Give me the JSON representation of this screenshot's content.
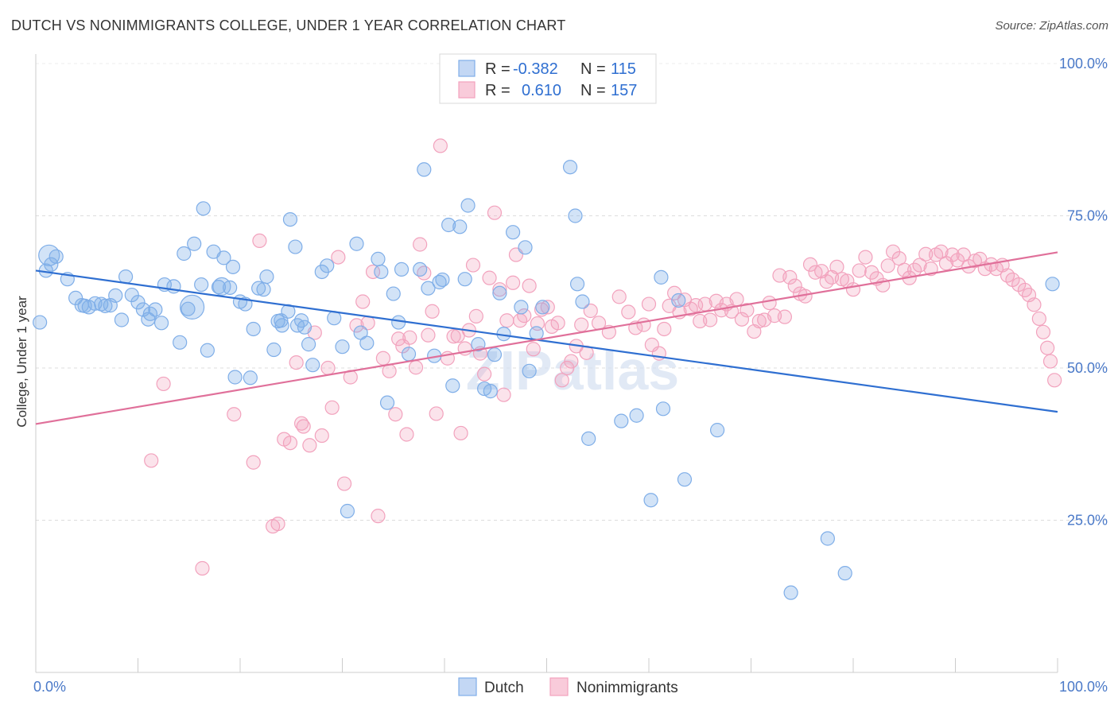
{
  "title": "DUTCH VS NONIMMIGRANTS COLLEGE, UNDER 1 YEAR CORRELATION CHART",
  "source": "Source: ZipAtlas.com",
  "watermark": "ZIPatlas",
  "legend_top": {
    "r_label": "R =",
    "n_label": "N =",
    "rows": [
      {
        "series": "Dutch",
        "r": "-0.382",
        "n": "115"
      },
      {
        "series": "Nonimmigrants",
        "r": "0.610",
        "n": "157"
      }
    ]
  },
  "chart_data": {
    "type": "scatter",
    "xlabel": "",
    "ylabel": "College, Under 1 year",
    "xlim": [
      0,
      100
    ],
    "ylim": [
      0,
      100
    ],
    "x_tick_labels": [
      "0.0%",
      "100.0%"
    ],
    "y_ticks": [
      25,
      50,
      75,
      100
    ],
    "y_tick_labels": [
      "25.0%",
      "50.0%",
      "75.0%",
      "100.0%"
    ],
    "grid": "horizontal dashed",
    "legend_position": "bottom-center",
    "colors": {
      "Dutch": "#7faee8",
      "Nonimmigrants": "#f2a2bd",
      "Dutch_line": "#2f6fd1",
      "Nonimmigrants_line": "#e0709a"
    },
    "series": [
      {
        "name": "Dutch",
        "trend": {
          "x": [
            0,
            100
          ],
          "y": [
            66.0,
            42.8
          ]
        },
        "points": [
          [
            1.3,
            68.5
          ],
          [
            1.5,
            67.0
          ],
          [
            3.1,
            64.6
          ],
          [
            3.9,
            61.5
          ],
          [
            4.5,
            60.3
          ],
          [
            5.2,
            60.0
          ],
          [
            5.8,
            60.6
          ],
          [
            6.4,
            60.5
          ],
          [
            7.3,
            60.3
          ],
          [
            7.8,
            61.9
          ],
          [
            8.4,
            57.9
          ],
          [
            8.8,
            65.0
          ],
          [
            9.4,
            62.0
          ],
          [
            10.0,
            60.8
          ],
          [
            10.5,
            59.6
          ],
          [
            11.0,
            58.0
          ],
          [
            11.7,
            59.6
          ],
          [
            12.3,
            57.4
          ],
          [
            12.6,
            63.7
          ],
          [
            13.5,
            63.4
          ],
          [
            14.1,
            54.2
          ],
          [
            14.5,
            68.8
          ],
          [
            14.9,
            59.7
          ],
          [
            15.5,
            70.4
          ],
          [
            16.2,
            63.7
          ],
          [
            16.4,
            76.2
          ],
          [
            16.8,
            52.9
          ],
          [
            17.4,
            69.1
          ],
          [
            17.9,
            63.3
          ],
          [
            18.4,
            68.1
          ],
          [
            19.0,
            63.2
          ],
          [
            19.3,
            66.6
          ],
          [
            19.5,
            48.5
          ],
          [
            20.0,
            60.9
          ],
          [
            20.5,
            60.5
          ],
          [
            21.0,
            48.4
          ],
          [
            21.3,
            56.4
          ],
          [
            22.3,
            62.9
          ],
          [
            22.6,
            65.0
          ],
          [
            23.3,
            53.0
          ],
          [
            23.7,
            57.7
          ],
          [
            24.1,
            57.0
          ],
          [
            24.7,
            59.3
          ],
          [
            24.9,
            74.4
          ],
          [
            25.4,
            69.9
          ],
          [
            25.6,
            57.0
          ],
          [
            26.3,
            56.7
          ],
          [
            26.7,
            53.9
          ],
          [
            27.1,
            50.5
          ],
          [
            28.0,
            65.8
          ],
          [
            28.5,
            66.8
          ],
          [
            29.2,
            58.2
          ],
          [
            30.0,
            53.5
          ],
          [
            30.5,
            26.5
          ],
          [
            31.4,
            70.4
          ],
          [
            31.8,
            55.8
          ],
          [
            32.4,
            54.1
          ],
          [
            33.5,
            67.9
          ],
          [
            33.8,
            65.8
          ],
          [
            34.4,
            44.3
          ],
          [
            35.0,
            62.2
          ],
          [
            35.8,
            66.2
          ],
          [
            35.5,
            57.5
          ],
          [
            36.5,
            52.3
          ],
          [
            37.6,
            66.2
          ],
          [
            38.0,
            82.6
          ],
          [
            38.4,
            63.1
          ],
          [
            39.0,
            52.0
          ],
          [
            39.5,
            64.1
          ],
          [
            39.8,
            64.5
          ],
          [
            40.4,
            73.5
          ],
          [
            40.8,
            47.1
          ],
          [
            41.5,
            73.2
          ],
          [
            42.0,
            64.6
          ],
          [
            42.3,
            76.7
          ],
          [
            43.3,
            53.9
          ],
          [
            43.9,
            46.6
          ],
          [
            44.5,
            46.2
          ],
          [
            44.9,
            52.2
          ],
          [
            45.4,
            62.3
          ],
          [
            45.8,
            55.6
          ],
          [
            46.7,
            72.3
          ],
          [
            47.5,
            60.0
          ],
          [
            47.9,
            69.8
          ],
          [
            48.3,
            49.5
          ],
          [
            49.0,
            55.7
          ],
          [
            49.6,
            60.0
          ],
          [
            52.3,
            83.0
          ],
          [
            52.8,
            75.0
          ],
          [
            53.0,
            63.8
          ],
          [
            53.5,
            60.9
          ],
          [
            54.1,
            38.4
          ],
          [
            57.3,
            41.3
          ],
          [
            58.8,
            42.2
          ],
          [
            60.2,
            28.3
          ],
          [
            61.2,
            64.9
          ],
          [
            61.4,
            43.3
          ],
          [
            62.9,
            61.1
          ],
          [
            63.5,
            31.7
          ],
          [
            66.7,
            39.8
          ],
          [
            73.9,
            13.1
          ],
          [
            79.2,
            16.3
          ],
          [
            77.5,
            22.0
          ],
          [
            99.5,
            63.8
          ],
          [
            0.4,
            57.5
          ],
          [
            1.0,
            66.0
          ],
          [
            2.0,
            68.3
          ],
          [
            4.8,
            60.2
          ],
          [
            6.8,
            60.2
          ],
          [
            11.2,
            58.9
          ],
          [
            15.3,
            60.0
          ],
          [
            18.2,
            63.4
          ],
          [
            21.8,
            63.1
          ],
          [
            24.0,
            57.8
          ],
          [
            26.0,
            57.8
          ]
        ]
      },
      {
        "name": "Nonimmigrants",
        "trend": {
          "x": [
            0,
            100
          ],
          "y": [
            40.8,
            69.0
          ]
        },
        "points": [
          [
            11.3,
            34.8
          ],
          [
            12.5,
            47.4
          ],
          [
            16.3,
            17.1
          ],
          [
            19.4,
            42.4
          ],
          [
            21.3,
            34.5
          ],
          [
            21.9,
            70.9
          ],
          [
            23.2,
            24.0
          ],
          [
            23.7,
            24.4
          ],
          [
            24.3,
            38.3
          ],
          [
            24.9,
            37.7
          ],
          [
            25.5,
            50.9
          ],
          [
            26.0,
            40.9
          ],
          [
            26.2,
            40.4
          ],
          [
            26.8,
            37.3
          ],
          [
            27.3,
            55.8
          ],
          [
            28.0,
            38.9
          ],
          [
            28.6,
            50.0
          ],
          [
            29.0,
            43.5
          ],
          [
            29.6,
            68.2
          ],
          [
            30.2,
            31.0
          ],
          [
            30.8,
            48.5
          ],
          [
            31.4,
            57.0
          ],
          [
            32.0,
            60.9
          ],
          [
            32.5,
            57.4
          ],
          [
            33.0,
            65.8
          ],
          [
            33.5,
            25.7
          ],
          [
            34.0,
            51.6
          ],
          [
            34.6,
            49.5
          ],
          [
            35.2,
            42.4
          ],
          [
            35.5,
            54.8
          ],
          [
            35.9,
            53.6
          ],
          [
            36.3,
            39.1
          ],
          [
            36.6,
            55.0
          ],
          [
            37.2,
            50.1
          ],
          [
            37.6,
            70.3
          ],
          [
            38.0,
            65.6
          ],
          [
            38.4,
            55.4
          ],
          [
            38.8,
            59.3
          ],
          [
            39.2,
            42.5
          ],
          [
            39.6,
            86.5
          ],
          [
            40.3,
            51.6
          ],
          [
            40.9,
            55.2
          ],
          [
            41.3,
            55.3
          ],
          [
            41.6,
            39.3
          ],
          [
            42.0,
            53.2
          ],
          [
            42.4,
            56.2
          ],
          [
            42.8,
            66.9
          ],
          [
            43.1,
            58.5
          ],
          [
            43.5,
            52.4
          ],
          [
            43.9,
            49.0
          ],
          [
            44.4,
            64.8
          ],
          [
            44.9,
            75.5
          ],
          [
            45.4,
            62.9
          ],
          [
            45.8,
            45.6
          ],
          [
            46.1,
            57.8
          ],
          [
            46.7,
            64.0
          ],
          [
            47.0,
            68.6
          ],
          [
            47.4,
            57.8
          ],
          [
            47.8,
            58.6
          ],
          [
            48.3,
            63.5
          ],
          [
            48.7,
            53.1
          ],
          [
            49.1,
            57.3
          ],
          [
            49.5,
            59.6
          ],
          [
            50.1,
            60.0
          ],
          [
            50.5,
            56.8
          ],
          [
            51.1,
            57.4
          ],
          [
            51.5,
            48.0
          ],
          [
            52.0,
            50.0
          ],
          [
            52.4,
            51.1
          ],
          [
            52.9,
            53.6
          ],
          [
            53.4,
            57.1
          ],
          [
            53.9,
            52.5
          ],
          [
            54.3,
            59.4
          ],
          [
            55.1,
            57.4
          ],
          [
            56.1,
            55.9
          ],
          [
            57.1,
            61.7
          ],
          [
            58.0,
            59.2
          ],
          [
            58.7,
            56.6
          ],
          [
            59.5,
            57.1
          ],
          [
            60.0,
            60.5
          ],
          [
            60.3,
            53.8
          ],
          [
            61.0,
            52.4
          ],
          [
            61.5,
            56.4
          ],
          [
            62.0,
            60.2
          ],
          [
            62.5,
            62.3
          ],
          [
            63.0,
            59.2
          ],
          [
            63.5,
            61.2
          ],
          [
            64.1,
            59.7
          ],
          [
            64.6,
            60.3
          ],
          [
            65.0,
            57.7
          ],
          [
            65.5,
            60.5
          ],
          [
            66.0,
            57.9
          ],
          [
            66.6,
            61.0
          ],
          [
            67.1,
            59.5
          ],
          [
            67.6,
            60.5
          ],
          [
            68.1,
            59.3
          ],
          [
            68.6,
            61.3
          ],
          [
            69.1,
            58.0
          ],
          [
            69.6,
            59.5
          ],
          [
            70.3,
            56.0
          ],
          [
            70.8,
            57.7
          ],
          [
            71.3,
            57.9
          ],
          [
            71.8,
            60.7
          ],
          [
            72.3,
            58.6
          ],
          [
            72.8,
            65.2
          ],
          [
            73.3,
            58.4
          ],
          [
            73.8,
            64.9
          ],
          [
            74.3,
            63.5
          ],
          [
            74.8,
            62.2
          ],
          [
            75.3,
            61.8
          ],
          [
            75.8,
            67.0
          ],
          [
            76.3,
            65.7
          ],
          [
            76.9,
            65.9
          ],
          [
            77.4,
            64.2
          ],
          [
            77.9,
            64.9
          ],
          [
            78.4,
            66.6
          ],
          [
            78.9,
            64.6
          ],
          [
            79.4,
            64.3
          ],
          [
            80.0,
            62.9
          ],
          [
            80.6,
            66.0
          ],
          [
            81.2,
            68.2
          ],
          [
            81.8,
            65.7
          ],
          [
            82.3,
            64.7
          ],
          [
            82.9,
            63.6
          ],
          [
            83.4,
            66.8
          ],
          [
            83.9,
            69.1
          ],
          [
            84.5,
            68.0
          ],
          [
            85.0,
            66.1
          ],
          [
            85.5,
            64.8
          ],
          [
            86.0,
            66.1
          ],
          [
            86.5,
            66.9
          ],
          [
            87.1,
            68.7
          ],
          [
            87.6,
            66.3
          ],
          [
            88.1,
            68.6
          ],
          [
            88.6,
            69.1
          ],
          [
            89.1,
            67.2
          ],
          [
            89.7,
            68.6
          ],
          [
            90.2,
            67.7
          ],
          [
            90.8,
            68.6
          ],
          [
            91.3,
            66.7
          ],
          [
            91.9,
            67.6
          ],
          [
            92.4,
            67.9
          ],
          [
            92.9,
            66.3
          ],
          [
            93.5,
            67.0
          ],
          [
            94.0,
            66.3
          ],
          [
            94.6,
            66.9
          ],
          [
            95.1,
            65.2
          ],
          [
            95.6,
            64.5
          ],
          [
            96.2,
            63.7
          ],
          [
            96.8,
            62.8
          ],
          [
            97.2,
            62.0
          ],
          [
            97.7,
            60.4
          ],
          [
            98.2,
            58.1
          ],
          [
            98.6,
            55.9
          ],
          [
            99.0,
            53.3
          ],
          [
            99.3,
            51.1
          ],
          [
            99.7,
            48.0
          ]
        ]
      }
    ]
  },
  "bottom_legend": [
    {
      "label": "Dutch"
    },
    {
      "label": "Nonimmigrants"
    }
  ]
}
